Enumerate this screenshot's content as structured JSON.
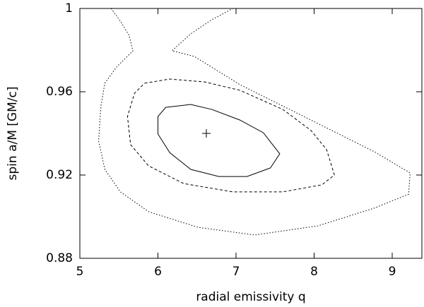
{
  "chart_data": {
    "type": "contour",
    "xlabel": "radial emissivity q",
    "ylabel": "spin a/M [GM/c]",
    "xlim": [
      5,
      9.38
    ],
    "ylim": [
      0.88,
      1
    ],
    "xticks": [
      5,
      6,
      7,
      8,
      9
    ],
    "yticks": [
      0.88,
      0.92,
      0.96,
      1
    ],
    "series": [
      {
        "line": "solid",
        "closed": true,
        "color": "#000000",
        "x": [
          6.1,
          6.42,
          6.69,
          7.05,
          7.35,
          7.56,
          7.44,
          7.14,
          6.78,
          6.42,
          6.15,
          6.0,
          6.0
        ],
        "y": [
          0.9525,
          0.9539,
          0.9515,
          0.9464,
          0.9403,
          0.9302,
          0.9234,
          0.9193,
          0.9193,
          0.9227,
          0.9308,
          0.9397,
          0.9481
        ]
      },
      {
        "line": "dashed",
        "closed": true,
        "color": "#000000",
        "x": [
          5.83,
          6.15,
          6.6,
          7.05,
          7.6,
          7.96,
          8.16,
          8.26,
          8.1,
          7.6,
          6.96,
          6.33,
          5.88,
          5.65,
          5.61,
          5.7
        ],
        "y": [
          0.9641,
          0.9661,
          0.9647,
          0.9607,
          0.9515,
          0.9414,
          0.9322,
          0.92,
          0.9153,
          0.9119,
          0.9119,
          0.9159,
          0.9244,
          0.9346,
          0.9481,
          0.9593
        ]
      },
      {
        "line": "dotted",
        "closed": false,
        "color": "#000000",
        "x": [
          5.4,
          5.52,
          5.63,
          5.68,
          5.47,
          5.32,
          5.27,
          5.24,
          5.32,
          5.52,
          5.88,
          6.51,
          7.24,
          8.05,
          8.77,
          9.21,
          9.23,
          8.77,
          7.96,
          7.05,
          6.47,
          6.18,
          6.42,
          6.69,
          6.96
        ],
        "y": [
          1.0,
          0.9939,
          0.9871,
          0.9797,
          0.9719,
          0.9641,
          0.9532,
          0.9363,
          0.9227,
          0.9119,
          0.9024,
          0.8949,
          0.8912,
          0.8956,
          0.9041,
          0.9108,
          0.921,
          0.9312,
          0.9464,
          0.9634,
          0.9769,
          0.9797,
          0.9878,
          0.9946,
          1.0
        ]
      }
    ],
    "best_fit": {
      "x": 6.62,
      "y": 0.94,
      "marker": "+",
      "color": "#000000"
    }
  }
}
